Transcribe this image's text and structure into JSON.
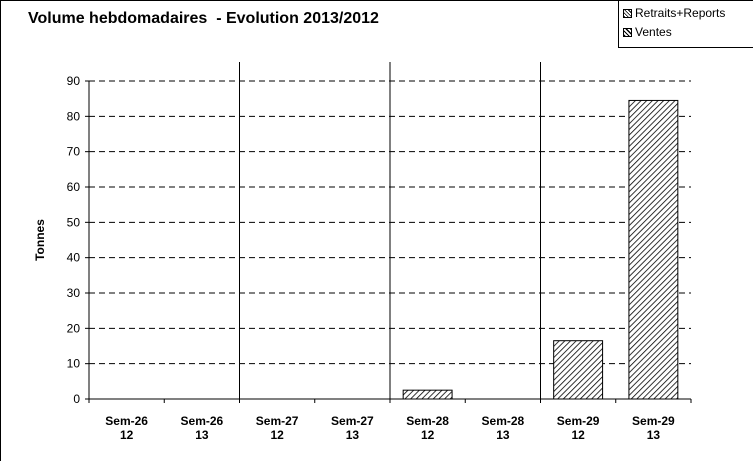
{
  "chart_data": {
    "type": "bar",
    "title": "Volume hebdomadaires  - Evolution 2013/2012",
    "ylabel": "Tonnes",
    "xlabel": "",
    "ylim": [
      0,
      90
    ],
    "yticks": [
      0,
      10,
      20,
      30,
      40,
      50,
      60,
      70,
      80,
      90
    ],
    "grid": true,
    "legend_position": "top-right",
    "categories": [
      [
        "Sem-26",
        "12"
      ],
      [
        "Sem-26",
        "13"
      ],
      [
        "Sem-27",
        "12"
      ],
      [
        "Sem-27",
        "13"
      ],
      [
        "Sem-28",
        "12"
      ],
      [
        "Sem-28",
        "13"
      ],
      [
        "Sem-29",
        "12"
      ],
      [
        "Sem-29",
        "13"
      ]
    ],
    "series": [
      {
        "name": "Retraits+Reports",
        "values": [
          0,
          0,
          0,
          0,
          0,
          0,
          0,
          0
        ]
      },
      {
        "name": "Ventes",
        "values": [
          0,
          0,
          0,
          0,
          2.5,
          0,
          16.5,
          84.5
        ]
      }
    ]
  },
  "colors": {
    "ink": "#000000",
    "background": "#ffffff"
  }
}
